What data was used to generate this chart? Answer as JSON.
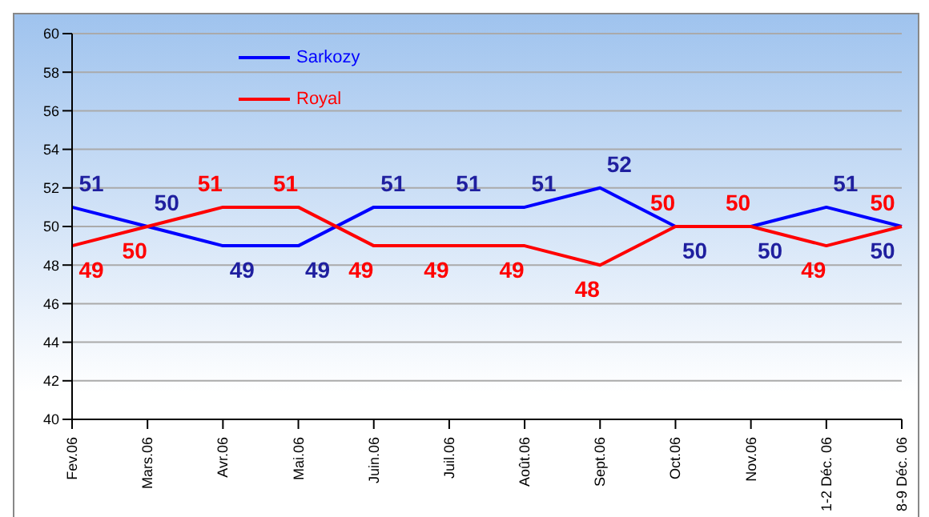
{
  "chart_data": {
    "type": "line",
    "categories": [
      "Fev.06",
      "Mars.06",
      "Avr.06",
      "Mai.06",
      "Juin.06",
      "Juil.06",
      "Août.06",
      "Sept.06",
      "Oct.06",
      "Nov.06",
      "1-2 Déc. 06",
      "8-9 Déc. 06"
    ],
    "series": [
      {
        "name": "Sarkozy",
        "color": "#0000ff",
        "values": [
          51,
          50,
          49,
          49,
          51,
          51,
          51,
          52,
          50,
          50,
          51,
          50
        ]
      },
      {
        "name": "Royal",
        "color": "#ff0000",
        "values": [
          49,
          50,
          51,
          51,
          49,
          49,
          49,
          48,
          50,
          50,
          49,
          50
        ]
      }
    ],
    "ylim": [
      40,
      60
    ],
    "yticks": [
      40,
      42,
      44,
      46,
      48,
      50,
      52,
      54,
      56,
      58,
      60
    ],
    "grid": "y",
    "legend": "top left",
    "data_labels": true,
    "marker": "none",
    "line_style": "solid"
  }
}
